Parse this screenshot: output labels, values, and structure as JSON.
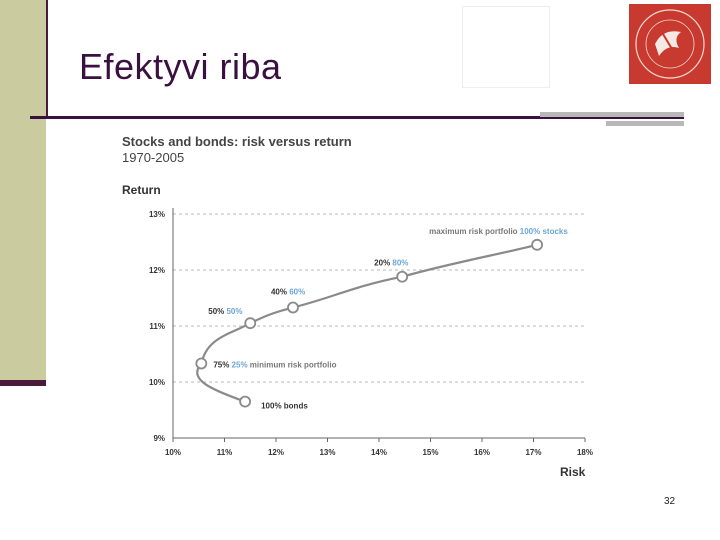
{
  "slide": {
    "title": "Efektyvi riba",
    "number": "32"
  },
  "colors": {
    "title": "#3a1040",
    "accent_olive": "#cbcba0",
    "rule": "#3a1040",
    "curve": "#8a8a8a",
    "highlight_label": "#6aa6d8",
    "logo_red": "#c83a30"
  },
  "logo": {
    "icon": "university-seal-icon"
  },
  "chart_data": {
    "type": "line",
    "title": "Stocks and bonds: risk versus return",
    "subtitle": "1970-2005",
    "ylabel": "Return",
    "xlabel": "Risk",
    "xlim": [
      10,
      18
    ],
    "ylim": [
      9,
      13
    ],
    "xticks": [
      "10%",
      "11%",
      "12%",
      "13%",
      "14%",
      "15%",
      "16%",
      "17%",
      "18%"
    ],
    "yticks": [
      "9%",
      "10%",
      "11%",
      "12%",
      "13%"
    ],
    "grid": "horizontal dashed",
    "points": [
      {
        "x": 11.4,
        "y": 9.65,
        "label_dark": "100% bonds",
        "label_blue": ""
      },
      {
        "x": 10.55,
        "y": 10.33,
        "label_dark": "75%",
        "label_blue": "25%",
        "label_grey": "minimum risk portfolio"
      },
      {
        "x": 11.5,
        "y": 11.05,
        "label_dark": "50%",
        "label_blue": "50%"
      },
      {
        "x": 12.33,
        "y": 11.33,
        "label_dark": "40%",
        "label_blue": "60%"
      },
      {
        "x": 14.45,
        "y": 11.88,
        "label_dark": "20%",
        "label_blue": "80%"
      },
      {
        "x": 17.07,
        "y": 12.45,
        "label_dark": "",
        "label_blue": "100% stocks",
        "label_grey": "maximum risk portfolio"
      }
    ]
  }
}
